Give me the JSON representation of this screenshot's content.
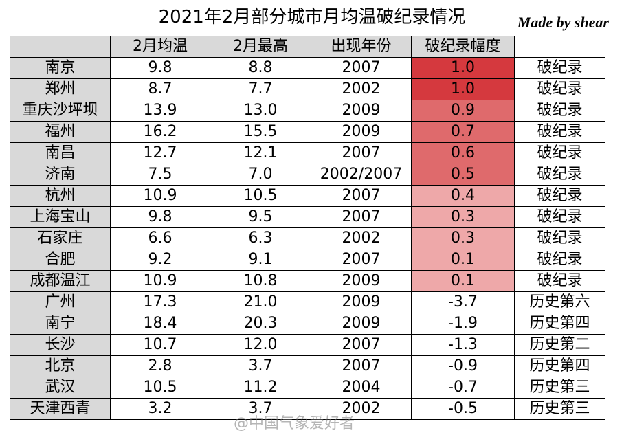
{
  "header": {
    "title": "2021年2月部分城市月均温破纪录情况",
    "credit": "Made by shear"
  },
  "table": {
    "columns": [
      "2月均温",
      "2月最高",
      "出现年份",
      "破纪录幅度"
    ],
    "rows": [
      [
        "南京",
        "9.8",
        "8.8",
        "2007",
        "1.0",
        "破纪录"
      ],
      [
        "郑州",
        "8.7",
        "7.7",
        "2002",
        "1.0",
        "破纪录"
      ],
      [
        "重庆沙坪坝",
        "13.9",
        "13.0",
        "2009",
        "0.9",
        "破纪录"
      ],
      [
        "福州",
        "16.2",
        "15.5",
        "2009",
        "0.7",
        "破纪录"
      ],
      [
        "南昌",
        "12.7",
        "12.1",
        "2007",
        "0.6",
        "破纪录"
      ],
      [
        "济南",
        "7.5",
        "7.0",
        "2002/2007",
        "0.5",
        "破纪录"
      ],
      [
        "杭州",
        "10.9",
        "10.5",
        "2007",
        "0.4",
        "破纪录"
      ],
      [
        "上海宝山",
        "9.8",
        "9.5",
        "2007",
        "0.3",
        "破纪录"
      ],
      [
        "石家庄",
        "6.6",
        "6.3",
        "2002",
        "0.3",
        "破纪录"
      ],
      [
        "合肥",
        "9.2",
        "9.1",
        "2007",
        "0.1",
        "破纪录"
      ],
      [
        "成都温江",
        "10.9",
        "10.8",
        "2009",
        "0.1",
        "破纪录"
      ],
      [
        "广州",
        "17.3",
        "21.0",
        "2009",
        "-3.7",
        "历史第六"
      ],
      [
        "南宁",
        "18.4",
        "20.3",
        "2009",
        "-1.9",
        "历史第四"
      ],
      [
        "长沙",
        "10.7",
        "12.0",
        "2007",
        "-1.3",
        "历史第二"
      ],
      [
        "北京",
        "2.8",
        "3.7",
        "2007",
        "-0.9",
        "历史第四"
      ],
      [
        "武汉",
        "10.5",
        "11.2",
        "2004",
        "-0.7",
        "历史第三"
      ],
      [
        "天津西青",
        "3.2",
        "3.7",
        "2002",
        "-0.5",
        "历史第三"
      ]
    ],
    "highlight_colors": [
      "#d5393e",
      "#d5393e",
      "#df6a6c",
      "#df6a6c",
      "#df6a6c",
      "#df6a6c",
      "#eea8a9",
      "#eea8a9",
      "#eea8a9",
      "#eea8a9",
      "#eea8a9",
      null,
      null,
      null,
      null,
      null,
      null
    ]
  },
  "watermark": "@中国气象爱好者"
}
